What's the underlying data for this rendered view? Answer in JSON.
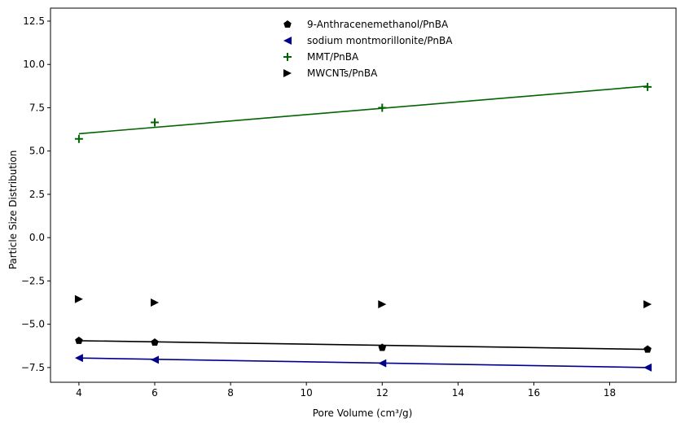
{
  "chart_data": {
    "type": "scatter",
    "title": "",
    "xlabel": "Pore Volume (cm³/g)",
    "ylabel": "Particle Size Distribution",
    "xlim": [
      3.25,
      19.75
    ],
    "ylim": [
      -8.35,
      13.25
    ],
    "x_ticks": [
      4,
      6,
      8,
      10,
      12,
      14,
      16,
      18
    ],
    "y_ticks": [
      -7.5,
      -5.0,
      -2.5,
      0.0,
      2.5,
      5.0,
      7.5,
      10.0,
      12.5
    ],
    "x_tick_labels": [
      "4",
      "6",
      "8",
      "10",
      "12",
      "14",
      "16",
      "18"
    ],
    "y_tick_labels": [
      "−7.5",
      "−5.0",
      "−2.5",
      "0.0",
      "2.5",
      "5.0",
      "7.5",
      "10.0",
      "12.5"
    ],
    "grid": false,
    "legend_position": "top-center",
    "series": [
      {
        "name": "9-Anthracenemethanol/PnBA",
        "marker": "pentagon",
        "color": "#000000",
        "x": [
          4,
          6,
          12,
          19
        ],
        "y": [
          -5.95,
          -6.05,
          -6.35,
          -6.45
        ],
        "fit_line": {
          "x": [
            4,
            19
          ],
          "y": [
            -5.95,
            -6.45
          ],
          "color": "#000000"
        }
      },
      {
        "name": "sodium montmorillonite/PnBA",
        "marker": "triangle-left",
        "color": "#00008b",
        "x": [
          4,
          6,
          12,
          19
        ],
        "y": [
          -6.95,
          -7.05,
          -7.25,
          -7.5
        ],
        "fit_line": {
          "x": [
            4,
            19
          ],
          "y": [
            -6.95,
            -7.5
          ],
          "color": "#00008b"
        }
      },
      {
        "name": "MMT/PnBA",
        "marker": "plus",
        "color": "#006400",
        "x": [
          4,
          6,
          12,
          19
        ],
        "y": [
          5.7,
          6.65,
          7.5,
          8.7
        ],
        "fit_line": {
          "x": [
            4,
            19
          ],
          "y": [
            6.0,
            8.75
          ],
          "color": "#006400"
        }
      },
      {
        "name": "MWCNTs/PnBA",
        "marker": "triangle-right",
        "color": "#000000",
        "x": [
          4,
          6,
          12,
          19
        ],
        "y": [
          -3.55,
          -3.75,
          -3.85,
          -3.85
        ]
      }
    ]
  }
}
